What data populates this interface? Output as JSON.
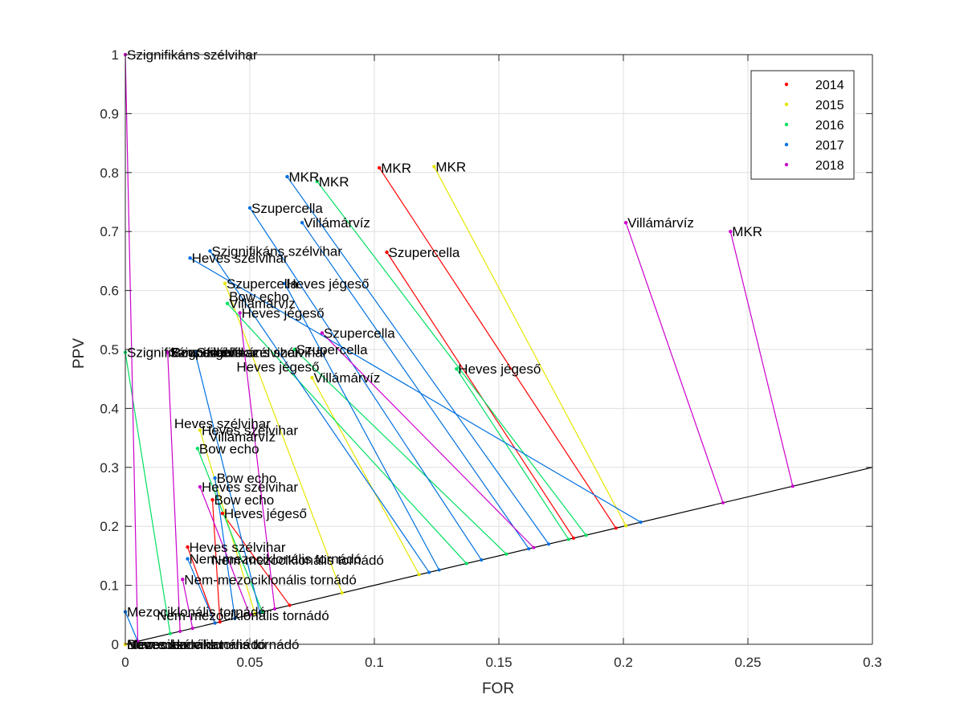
{
  "chart_data": {
    "type": "scatter",
    "xlabel": "FOR",
    "ylabel": "PPV",
    "xlim": [
      0,
      0.3
    ],
    "ylim": [
      0,
      1
    ],
    "xticks": [
      "0",
      "0.05",
      "0.1",
      "0.15",
      "0.2",
      "0.25",
      "0.3"
    ],
    "yticks": [
      "0",
      "0.1",
      "0.2",
      "0.3",
      "0.4",
      "0.5",
      "0.6",
      "0.7",
      "0.8",
      "0.9",
      "1"
    ],
    "grid": true,
    "legend_position": "top-right",
    "reference_line": {
      "x": [
        0,
        0.3
      ],
      "y": [
        0,
        0.3
      ],
      "color": "#000000"
    },
    "series": [
      {
        "name": "2014",
        "color": "#ff0000",
        "points": [
          {
            "x": 0.102,
            "y": 0.808,
            "label": "MKR",
            "end": [
              0.197,
              0.197
            ]
          },
          {
            "x": 0.105,
            "y": 0.665,
            "label": "Szupercella",
            "end": [
              0.18,
              0.18
            ]
          },
          {
            "x": 0.035,
            "y": 0.245,
            "label": "Bow echo",
            "end": [
              0.038,
              0.038
            ]
          },
          {
            "x": 0.039,
            "y": 0.222,
            "label": "Heves jégeső",
            "end": [
              0.066,
              0.066
            ]
          },
          {
            "x": 0.025,
            "y": 0.165,
            "label": "Heves szélvihar",
            "end": [
              0.036,
              0.036
            ]
          },
          {
            "x": 0.0,
            "y": 0.0,
            "label": "Mezociklonális tornádó",
            "end": [
              0.0,
              0.0
            ]
          }
        ]
      },
      {
        "name": "2015",
        "color": "#e6e600",
        "points": [
          {
            "x": 0.124,
            "y": 0.81,
            "label": "MKR",
            "end": [
              0.201,
              0.201
            ]
          },
          {
            "x": 0.04,
            "y": 0.612,
            "label": "Szupercella",
            "end": [
              0.087,
              0.087
            ]
          },
          {
            "x": 0.075,
            "y": 0.452,
            "label": "Villámárvíz",
            "end": [
              0.118,
              0.118
            ]
          },
          {
            "x": 0.03,
            "y": 0.363,
            "label": "Heves szélvihar",
            "end": [
              0.052,
              0.052
            ]
          },
          {
            "x": 0.0,
            "y": 0.0,
            "label": "Bow echo",
            "end": [
              0.0,
              0.0
            ]
          }
        ]
      },
      {
        "name": "2016",
        "color": "#00e060",
        "points": [
          {
            "x": 0.077,
            "y": 0.785,
            "label": "MKR",
            "end": [
              0.185,
              0.185
            ]
          },
          {
            "x": 0.041,
            "y": 0.578,
            "label": "Villámárvíz",
            "end": [
              0.137,
              0.137
            ]
          },
          {
            "x": 0.068,
            "y": 0.5,
            "label": "Szupercella",
            "end": [
              0.153,
              0.153
            ]
          },
          {
            "x": 0.133,
            "y": 0.467,
            "label": "Heves jégeső",
            "end": [
              0.178,
              0.178
            ]
          },
          {
            "x": 0.029,
            "y": 0.332,
            "label": "Bow echo",
            "end": [
              0.055,
              0.055
            ]
          },
          {
            "x": 0.0,
            "y": 0.495,
            "label": "Szignifikáns szélvihar",
            "end": [
              0.018,
              0.018
            ]
          }
        ]
      },
      {
        "name": "2017",
        "color": "#0070e0",
        "points": [
          {
            "x": 0.065,
            "y": 0.793,
            "label": "MKR",
            "end": [
              0.17,
              0.17
            ]
          },
          {
            "x": 0.05,
            "y": 0.74,
            "label": "Szupercella",
            "end": [
              0.143,
              0.143
            ]
          },
          {
            "x": 0.071,
            "y": 0.715,
            "label": "Villámárvíz",
            "end": [
              0.162,
              0.162
            ]
          },
          {
            "x": 0.034,
            "y": 0.667,
            "label": "Szignifikáns szélvihar",
            "end": [
              0.122,
              0.122
            ]
          },
          {
            "x": 0.026,
            "y": 0.655,
            "label": "Heves szélvihar",
            "end": [
              0.207,
              0.207
            ]
          },
          {
            "x": 0.064,
            "y": 0.612,
            "label": "Heves jégeső",
            "end": [
              0.126,
              0.126
            ]
          },
          {
            "x": 0.036,
            "y": 0.282,
            "label": "Bow echo",
            "end": [
              0.044,
              0.044
            ]
          },
          {
            "x": 0.025,
            "y": 0.145,
            "label": "Nem-mezociklonális tornádó",
            "end": [
              0.036,
              0.036
            ]
          },
          {
            "x": 0.0,
            "y": 0.055,
            "label": "Mezociklonális tornádó",
            "end": [
              0.005,
              0.005
            ]
          },
          {
            "x": 0.028,
            "y": 0.495,
            "label": "Szignifikáns szélvihar",
            "end": [
              0.054,
              0.054
            ]
          }
        ]
      },
      {
        "name": "2018",
        "color": "#cc00cc",
        "points": [
          {
            "x": 0.0,
            "y": 1.0,
            "label": "Szignifikáns szélvihar",
            "end": [
              0.005,
              0.005
            ]
          },
          {
            "x": 0.201,
            "y": 0.715,
            "label": "Villámárvíz",
            "end": [
              0.24,
              0.24
            ]
          },
          {
            "x": 0.243,
            "y": 0.7,
            "label": "MKR",
            "end": [
              0.268,
              0.268
            ]
          },
          {
            "x": 0.079,
            "y": 0.528,
            "label": "Szupercella",
            "end": [
              0.164,
              0.164
            ]
          },
          {
            "x": 0.046,
            "y": 0.562,
            "label": "Heves jégeső",
            "end": [
              0.06,
              0.06
            ]
          },
          {
            "x": 0.017,
            "y": 0.495,
            "label": "Szignifikáns szélvihar",
            "end": [
              0.022,
              0.022
            ]
          },
          {
            "x": 0.03,
            "y": 0.267,
            "label": "Heves szélvihar",
            "end": [
              0.05,
              0.05
            ]
          },
          {
            "x": 0.023,
            "y": 0.11,
            "label": "Nem-mezociklonális tornádó",
            "end": [
              0.027,
              0.027
            ]
          }
        ]
      }
    ],
    "labels_only": [
      {
        "x": 0.041,
        "y": 0.59,
        "label": "Bow echo"
      },
      {
        "x": 0.044,
        "y": 0.471,
        "label": "Heves jégeső"
      },
      {
        "x": 0.019,
        "y": 0.375,
        "label": "Heves szélvihar"
      },
      {
        "x": 0.033,
        "y": 0.352,
        "label": "Villámárvíz"
      },
      {
        "x": 0.034,
        "y": 0.143,
        "label": "Nem-mezociklonális tornádó"
      },
      {
        "x": 0.012,
        "y": 0.049,
        "label": "Nem-mezociklonális tornádó"
      },
      {
        "x": 0.018,
        "y": 0.495,
        "label": "Szupercella"
      },
      {
        "x": 0.018,
        "y": 0.495,
        "label": "Bow echo"
      },
      {
        "x": 0.0,
        "y": 0.0,
        "label": "Nem-mezociklonális tornádó"
      },
      {
        "x": 0.0,
        "y": 0.0,
        "label": "Heves szélvihar"
      }
    ]
  }
}
